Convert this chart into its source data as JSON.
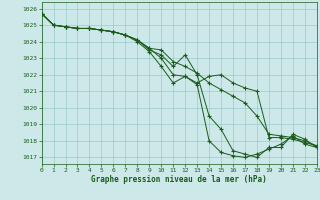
{
  "title": "Graphe pression niveau de la mer (hPa)",
  "background_color": "#cce8e8",
  "grid_color": "#99cccc",
  "line_color": "#1a5c1a",
  "xlim": [
    0,
    23
  ],
  "ylim": [
    1016.6,
    1026.4
  ],
  "yticks": [
    1017,
    1018,
    1019,
    1020,
    1021,
    1022,
    1023,
    1024,
    1025,
    1026
  ],
  "xticks": [
    0,
    1,
    2,
    3,
    4,
    5,
    6,
    7,
    8,
    9,
    10,
    11,
    12,
    13,
    14,
    15,
    16,
    17,
    18,
    19,
    20,
    21,
    22,
    23
  ],
  "series": [
    [
      1025.7,
      1025.0,
      1024.9,
      1024.8,
      1024.8,
      1024.7,
      1024.6,
      1024.4,
      1024.1,
      1023.6,
      1023.0,
      1022.0,
      1021.9,
      1021.5,
      1021.9,
      1022.0,
      1021.5,
      1021.2,
      1021.0,
      1018.2,
      1018.2,
      1018.1,
      1017.9,
      1017.7
    ],
    [
      1025.7,
      1025.0,
      1024.9,
      1024.8,
      1024.8,
      1024.7,
      1024.6,
      1024.4,
      1024.1,
      1023.6,
      1023.5,
      1022.8,
      1022.5,
      1022.1,
      1021.5,
      1021.1,
      1020.7,
      1020.3,
      1019.5,
      1018.4,
      1018.3,
      1018.2,
      1018.0,
      1017.7
    ],
    [
      1025.7,
      1025.0,
      1024.9,
      1024.8,
      1024.8,
      1024.7,
      1024.6,
      1024.4,
      1024.1,
      1023.5,
      1023.2,
      1022.5,
      1023.2,
      1022.0,
      1019.5,
      1018.7,
      1017.4,
      1017.2,
      1017.0,
      1017.6,
      1017.6,
      1018.4,
      1018.1,
      1017.6
    ],
    [
      1025.7,
      1025.0,
      1024.9,
      1024.8,
      1024.8,
      1024.7,
      1024.6,
      1024.4,
      1024.0,
      1023.4,
      1022.5,
      1021.5,
      1021.9,
      1021.4,
      1018.0,
      1017.3,
      1017.1,
      1017.0,
      1017.2,
      1017.5,
      1017.8,
      1018.3,
      1017.8,
      1017.6
    ]
  ]
}
